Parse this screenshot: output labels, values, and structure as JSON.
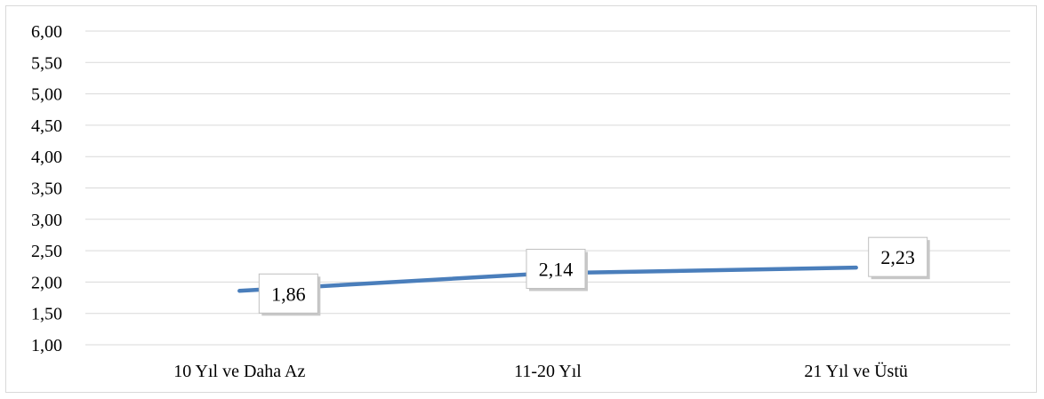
{
  "chart_data": {
    "type": "line",
    "categories": [
      "10 Yıl ve Daha Az",
      "11-20 Yıl",
      "21 Yıl ve Üstü"
    ],
    "values": [
      1.86,
      2.14,
      2.23
    ],
    "data_labels": [
      "1,86",
      "2,14",
      "2,23"
    ],
    "y_ticks": [
      "1,00",
      "1,50",
      "2,00",
      "2,50",
      "3,00",
      "3,50",
      "4,00",
      "4,50",
      "5,00",
      "5,50",
      "6,00"
    ],
    "ylim": [
      1.0,
      6.0
    ],
    "grid": true,
    "legend": "none",
    "title": "",
    "xlabel": "",
    "ylabel": "",
    "line_color": "#4a7ebb",
    "grid_color": "#d9d9d9"
  }
}
